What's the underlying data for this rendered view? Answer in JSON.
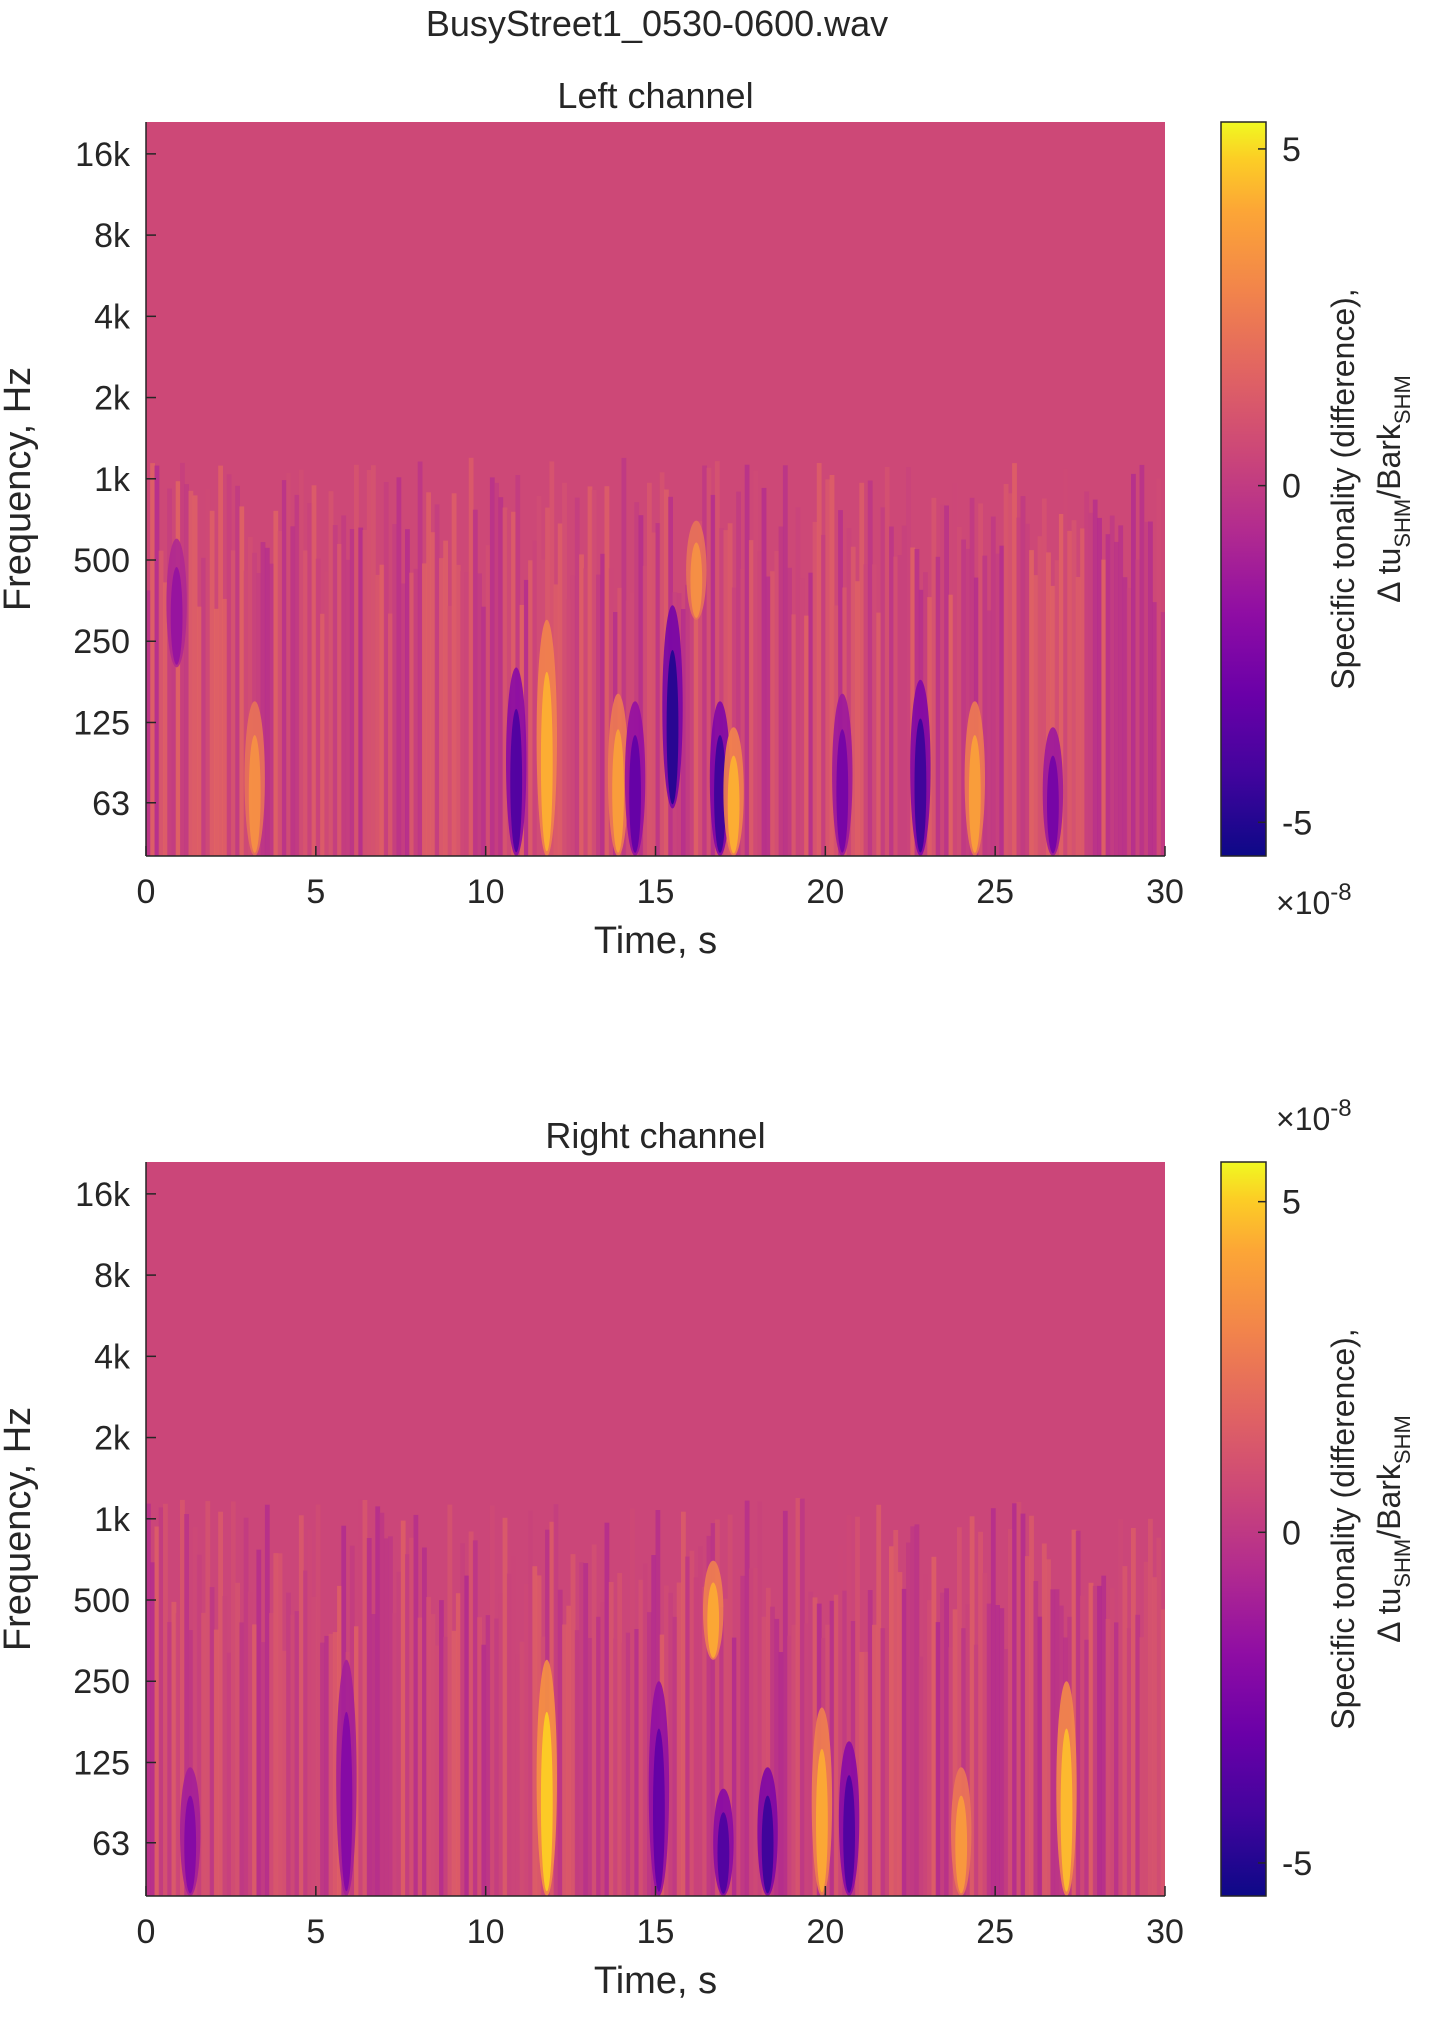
{
  "figure": {
    "title": "BusyStreet1_0530-0600.wav"
  },
  "chart_data": [
    {
      "type": "heatmap",
      "title": "Left channel",
      "xlabel": "Time, s",
      "ylabel": "Frequency, Hz",
      "xlim": [
        0,
        30
      ],
      "x_ticks": [
        0,
        5,
        10,
        15,
        20,
        25,
        30
      ],
      "x_tick_labels": [
        "0",
        "5",
        "10",
        "15",
        "20",
        "25",
        "30"
      ],
      "y_scale": "log",
      "y_ticks": [
        63,
        125,
        250,
        500,
        1000,
        2000,
        4000,
        8000,
        16000
      ],
      "y_tick_labels": [
        "63",
        "125",
        "250",
        "500",
        "1k",
        "2k",
        "4k",
        "8k",
        "16k"
      ],
      "colormap": "plasma",
      "colorbar": {
        "label_line1": "Specific tonality (difference),",
        "label_line2_a": "Δ tu",
        "label_line2_sub1": "SHM",
        "label_line2_b": "/Bark",
        "label_line2_sub2": "SHM",
        "exponent_prefix": "×10",
        "exponent": "-8",
        "ticks": [
          -5,
          0,
          5
        ],
        "tick_labels": [
          "-5",
          "0",
          "5"
        ],
        "range": [
          -5.5,
          5.4
        ]
      },
      "features": [
        {
          "t": 0.9,
          "f_lo": 200,
          "f_hi": 600,
          "v": -2.0
        },
        {
          "t": 3.2,
          "f_lo": 40,
          "f_hi": 150,
          "v": 2.5
        },
        {
          "t": 10.9,
          "f_lo": 40,
          "f_hi": 200,
          "v": -4.0
        },
        {
          "t": 11.8,
          "f_lo": 40,
          "f_hi": 300,
          "v": 3.5
        },
        {
          "t": 13.9,
          "f_lo": 40,
          "f_hi": 160,
          "v": 3.0
        },
        {
          "t": 14.4,
          "f_lo": 40,
          "f_hi": 150,
          "v": -3.5
        },
        {
          "t": 15.5,
          "f_lo": 60,
          "f_hi": 340,
          "v": -5.0
        },
        {
          "t": 16.2,
          "f_lo": 300,
          "f_hi": 700,
          "v": 2.5
        },
        {
          "t": 16.9,
          "f_lo": 40,
          "f_hi": 150,
          "v": -4.5
        },
        {
          "t": 17.3,
          "f_lo": 40,
          "f_hi": 120,
          "v": 3.5
        },
        {
          "t": 20.5,
          "f_lo": 40,
          "f_hi": 160,
          "v": -3.0
        },
        {
          "t": 22.8,
          "f_lo": 40,
          "f_hi": 180,
          "v": -4.5
        },
        {
          "t": 24.4,
          "f_lo": 40,
          "f_hi": 150,
          "v": 3.0
        },
        {
          "t": 26.7,
          "f_lo": 40,
          "f_hi": 120,
          "v": -3.0
        }
      ]
    },
    {
      "type": "heatmap",
      "title": "Right channel",
      "xlabel": "Time, s",
      "ylabel": "Frequency, Hz",
      "xlim": [
        0,
        30
      ],
      "x_ticks": [
        0,
        5,
        10,
        15,
        20,
        25,
        30
      ],
      "x_tick_labels": [
        "0",
        "5",
        "10",
        "15",
        "20",
        "25",
        "30"
      ],
      "y_scale": "log",
      "y_ticks": [
        63,
        125,
        250,
        500,
        1000,
        2000,
        4000,
        8000,
        16000
      ],
      "y_tick_labels": [
        "63",
        "125",
        "250",
        "500",
        "1k",
        "2k",
        "4k",
        "8k",
        "16k"
      ],
      "colormap": "plasma",
      "colorbar": {
        "label_line1": "Specific tonality (difference),",
        "label_line2_a": "Δ tu",
        "label_line2_sub1": "SHM",
        "label_line2_b": "/Bark",
        "label_line2_sub2": "SHM",
        "exponent_prefix": "×10",
        "exponent": "-8",
        "ticks": [
          -5,
          0,
          5
        ],
        "tick_labels": [
          "-5",
          "0",
          "5"
        ],
        "range": [
          -5.5,
          5.6
        ]
      },
      "features": [
        {
          "t": 1.3,
          "f_lo": 40,
          "f_hi": 120,
          "v": -2.5
        },
        {
          "t": 5.9,
          "f_lo": 40,
          "f_hi": 300,
          "v": -2.5
        },
        {
          "t": 11.8,
          "f_lo": 40,
          "f_hi": 300,
          "v": 4.5
        },
        {
          "t": 15.1,
          "f_lo": 40,
          "f_hi": 250,
          "v": -3.5
        },
        {
          "t": 16.7,
          "f_lo": 300,
          "f_hi": 700,
          "v": 3.5
        },
        {
          "t": 17.0,
          "f_lo": 40,
          "f_hi": 100,
          "v": -4.0
        },
        {
          "t": 18.3,
          "f_lo": 40,
          "f_hi": 120,
          "v": -4.5
        },
        {
          "t": 19.9,
          "f_lo": 40,
          "f_hi": 200,
          "v": 3.5
        },
        {
          "t": 20.7,
          "f_lo": 40,
          "f_hi": 150,
          "v": -4.0
        },
        {
          "t": 24.0,
          "f_lo": 40,
          "f_hi": 120,
          "v": 3.0
        },
        {
          "t": 27.1,
          "f_lo": 40,
          "f_hi": 250,
          "v": 4.0
        }
      ]
    }
  ]
}
